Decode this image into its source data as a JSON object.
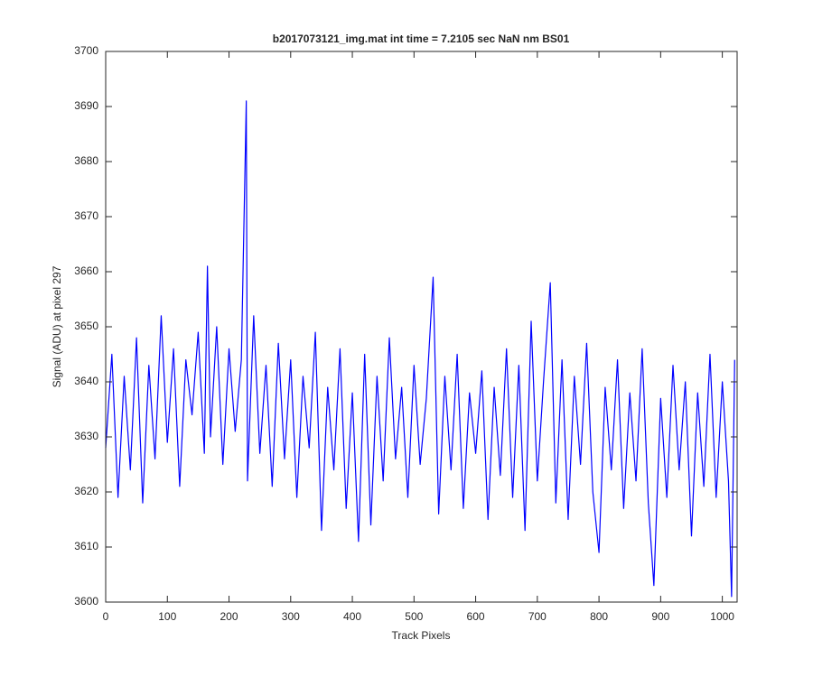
{
  "chart_data": {
    "type": "line",
    "title": "b2017073121_img.mat int time = 7.2105 sec  NaN nm BS01",
    "x_label": "Track Pixels",
    "y_label": "Signal (ADU) at pixel 297",
    "x": [
      0,
      10,
      20,
      30,
      40,
      50,
      60,
      70,
      80,
      90,
      100,
      110,
      120,
      130,
      140,
      150,
      160,
      165,
      170,
      180,
      190,
      200,
      210,
      220,
      228,
      230,
      240,
      250,
      260,
      270,
      280,
      290,
      300,
      310,
      320,
      330,
      340,
      350,
      360,
      370,
      380,
      390,
      400,
      410,
      420,
      430,
      440,
      450,
      460,
      470,
      480,
      490,
      500,
      510,
      520,
      531,
      540,
      550,
      560,
      570,
      580,
      590,
      600,
      610,
      620,
      630,
      640,
      650,
      660,
      670,
      680,
      690,
      700,
      710,
      721,
      730,
      740,
      750,
      760,
      770,
      780,
      790,
      800,
      810,
      820,
      830,
      840,
      850,
      860,
      870,
      880,
      889,
      900,
      910,
      920,
      930,
      940,
      950,
      960,
      970,
      980,
      990,
      1000,
      1010,
      1015,
      1020
    ],
    "series": [
      {
        "color": "#0000ff",
        "values": [
          3628,
          3645,
          3619,
          3641,
          3624,
          3648,
          3618,
          3643,
          3626,
          3652,
          3629,
          3646,
          3621,
          3644,
          3634,
          3649,
          3627,
          3661,
          3630,
          3650,
          3625,
          3646,
          3631,
          3644,
          3691,
          3622,
          3652,
          3627,
          3643,
          3621,
          3647,
          3626,
          3644,
          3619,
          3641,
          3628,
          3649,
          3613,
          3639,
          3624,
          3646,
          3617,
          3638,
          3611,
          3645,
          3614,
          3641,
          3622,
          3648,
          3626,
          3639,
          3619,
          3643,
          3625,
          3637,
          3659,
          3616,
          3641,
          3624,
          3645,
          3617,
          3638,
          3627,
          3642,
          3615,
          3639,
          3623,
          3646,
          3619,
          3643,
          3613,
          3651,
          3622,
          3640,
          3658,
          3618,
          3644,
          3615,
          3641,
          3625,
          3647,
          3620,
          3609,
          3639,
          3624,
          3644,
          3617,
          3638,
          3622,
          3646,
          3618,
          3603,
          3637,
          3619,
          3643,
          3624,
          3640,
          3612,
          3638,
          3621,
          3645,
          3619,
          3640,
          3622,
          3601,
          3644
        ]
      }
    ],
    "xlim": [
      0,
      1024
    ],
    "xticks": [
      0,
      100,
      200,
      300,
      400,
      500,
      600,
      700,
      800,
      900,
      1000
    ],
    "ylim": [
      3600,
      3700
    ],
    "yticks": [
      3600,
      3610,
      3620,
      3630,
      3640,
      3650,
      3660,
      3670,
      3680,
      3690,
      3700
    ],
    "grid": false
  }
}
